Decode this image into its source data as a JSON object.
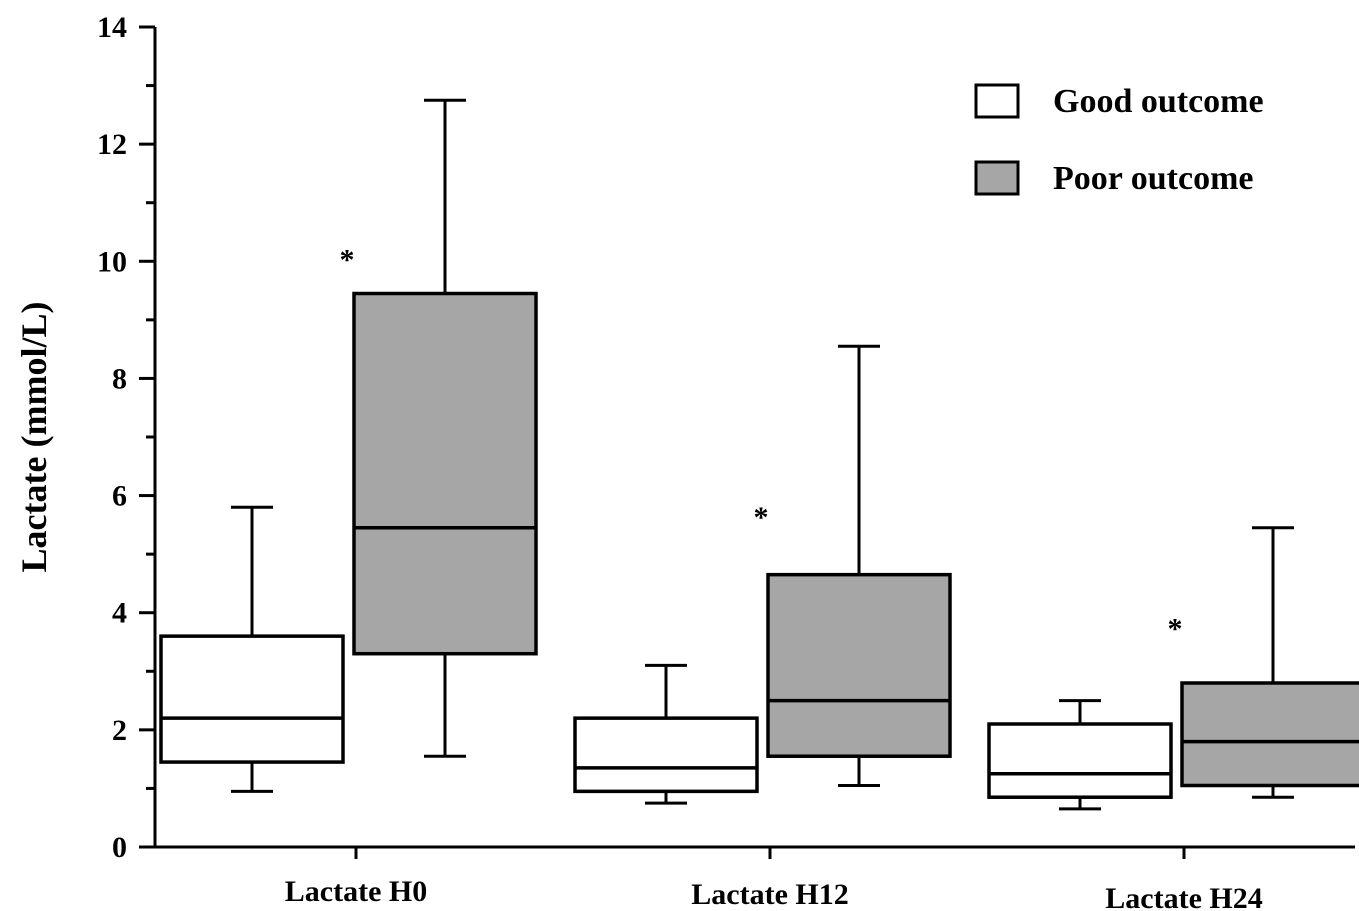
{
  "chart_data": {
    "type": "box",
    "title": "",
    "xlabel": "",
    "ylabel": "Lactate (mmol/L)",
    "ylim": [
      0,
      14
    ],
    "yticks": [
      0,
      2,
      4,
      6,
      8,
      10,
      12,
      14
    ],
    "grid": false,
    "legend_position": "top-right",
    "categories": [
      "Lactate H0",
      "Lactate H12",
      "Lactate H24"
    ],
    "series": [
      {
        "name": "Good outcome",
        "color": "#ffffff",
        "boxes": [
          {
            "whisker_low": 0.95,
            "q1": 1.45,
            "median": 2.2,
            "q3": 3.6,
            "whisker_high": 5.8
          },
          {
            "whisker_low": 0.75,
            "q1": 0.95,
            "median": 1.35,
            "q3": 2.2,
            "whisker_high": 3.1
          },
          {
            "whisker_low": 0.65,
            "q1": 0.85,
            "median": 1.25,
            "q3": 2.1,
            "whisker_high": 2.5
          }
        ]
      },
      {
        "name": "Poor outcome",
        "color": "#a6a6a6",
        "boxes": [
          {
            "whisker_low": 1.55,
            "q1": 3.3,
            "median": 5.45,
            "q3": 9.45,
            "whisker_high": 12.75
          },
          {
            "whisker_low": 1.05,
            "q1": 1.55,
            "median": 2.5,
            "q3": 4.65,
            "whisker_high": 8.55
          },
          {
            "whisker_low": 0.85,
            "q1": 1.05,
            "median": 1.8,
            "q3": 2.8,
            "whisker_high": 5.45
          }
        ]
      }
    ],
    "annotations": [
      {
        "text": "*",
        "category": 0,
        "y": 10.1
      },
      {
        "text": "*",
        "category": 1,
        "y": 5.7
      },
      {
        "text": "*",
        "category": 2,
        "y": 3.8
      }
    ]
  }
}
